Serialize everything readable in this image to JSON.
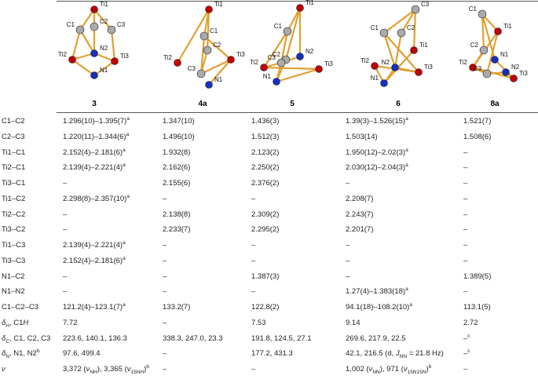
{
  "table": {
    "columns": [
      "3",
      "4a",
      "5",
      "6",
      "8a"
    ],
    "structures": [
      {
        "atoms": [
          "Ti1",
          "C1",
          "C2",
          "C3",
          "N2",
          "Ti2",
          "N1",
          "Ti3"
        ]
      },
      {
        "atoms": [
          "Ti1",
          "C1",
          "C2",
          "Ti2",
          "C3",
          "Ti3",
          "N1"
        ]
      },
      {
        "atoms": [
          "Ti1",
          "C1",
          "N2",
          "C2",
          "C3",
          "Ti2",
          "Ti3",
          "N1"
        ]
      },
      {
        "atoms": [
          "C3",
          "C1",
          "C2",
          "Ti1",
          "N2",
          "Ti3",
          "Ti2",
          "N1"
        ]
      },
      {
        "atoms": [
          "C1",
          "Ti1",
          "C2",
          "N1",
          "Ti2",
          "C3",
          "N2",
          "Ti3"
        ]
      }
    ],
    "rows": [
      {
        "label": [
          "C1–C2"
        ],
        "cells": [
          [
            {
              "text": "1.296(10)–1.395(7)"
            },
            {
              "text": "a",
              "style": "sup"
            }
          ],
          [
            "1.347(10)"
          ],
          [
            "1.436(3)"
          ],
          [
            {
              "text": "1.39(3)–1.526(15)"
            },
            {
              "text": "a",
              "style": "sup"
            }
          ],
          [
            "1.521(7)"
          ]
        ]
      },
      {
        "label": [
          "C2–C3"
        ],
        "cells": [
          [
            {
              "text": "1.220(11)–1.344(6)"
            },
            {
              "text": "a",
              "style": "sup"
            }
          ],
          [
            "1.496(10)"
          ],
          [
            "1.512(3)"
          ],
          [
            "1.503(14)"
          ],
          [
            "1.508(6)"
          ]
        ]
      },
      {
        "label": [
          "Ti1–C1"
        ],
        "cells": [
          [
            {
              "text": "2.152(4)–2.181(6)"
            },
            {
              "text": "a",
              "style": "sup"
            }
          ],
          [
            "1.932(8)"
          ],
          [
            "2.123(2)"
          ],
          [
            {
              "text": "1.950(12)–2.02(3)"
            },
            {
              "text": "a",
              "style": "sup"
            }
          ],
          [
            "–"
          ]
        ]
      },
      {
        "label": [
          "Ti2–C1"
        ],
        "cells": [
          [
            {
              "text": "2.139(4)–2.221(4)"
            },
            {
              "text": "a",
              "style": "sup"
            }
          ],
          [
            "2.162(6)"
          ],
          [
            "2.250(2)"
          ],
          [
            {
              "text": "2.030(12)–2.04(3)"
            },
            {
              "text": "a",
              "style": "sup"
            }
          ],
          [
            "–"
          ]
        ]
      },
      {
        "label": [
          "Ti3–C1"
        ],
        "cells": [
          [
            "–"
          ],
          [
            "2.155(6)"
          ],
          [
            "2.376(2)"
          ],
          [
            "–"
          ],
          [
            "–"
          ]
        ]
      },
      {
        "label": [
          "Ti1–C2"
        ],
        "cells": [
          [
            {
              "text": "2.298(8)–2.357(10)"
            },
            {
              "text": "a",
              "style": "sup"
            }
          ],
          [
            "–"
          ],
          [
            "–"
          ],
          [
            "2.208(7)"
          ],
          [
            "–"
          ]
        ]
      },
      {
        "label": [
          "Ti2–C2"
        ],
        "cells": [
          [
            "–"
          ],
          [
            "2.138(8)"
          ],
          [
            "2.309(2)"
          ],
          [
            "2.243(7)"
          ],
          [
            "–"
          ]
        ]
      },
      {
        "label": [
          "Ti3–C2"
        ],
        "cells": [
          [
            "–"
          ],
          [
            "2.233(7)"
          ],
          [
            "2.295(2)"
          ],
          [
            "2.201(7)"
          ],
          [
            "–"
          ]
        ]
      },
      {
        "label": [
          "Ti1–C3"
        ],
        "cells": [
          [
            {
              "text": "2.139(4)–2.221(4)"
            },
            {
              "text": "a",
              "style": "sup"
            }
          ],
          [
            "–"
          ],
          [
            "–"
          ],
          [
            "–"
          ],
          [
            "–"
          ]
        ]
      },
      {
        "label": [
          "Ti3–C3"
        ],
        "cells": [
          [
            {
              "text": "2.152(4)–2.181(6)"
            },
            {
              "text": "a",
              "style": "sup"
            }
          ],
          [
            "–"
          ],
          [
            "–"
          ],
          [
            "–"
          ],
          [
            "–"
          ]
        ]
      },
      {
        "label": [
          "N1–C2"
        ],
        "cells": [
          [
            "–"
          ],
          [
            "–"
          ],
          [
            "1.387(3)"
          ],
          [
            "–"
          ],
          [
            "1.389(5)"
          ]
        ]
      },
      {
        "label": [
          "N1–N2"
        ],
        "cells": [
          [
            "–"
          ],
          [
            "–"
          ],
          [
            "–"
          ],
          [
            {
              "text": "1.27(4)–1.383(18)"
            },
            {
              "text": "a",
              "style": "sup"
            }
          ],
          [
            "–"
          ]
        ]
      },
      {
        "label": [
          "C1–C2–C3"
        ],
        "cells": [
          [
            {
              "text": "121.2(4)–123.1(7)"
            },
            {
              "text": "a",
              "style": "sup"
            }
          ],
          [
            "133.2(7)"
          ],
          [
            "122.8(2)"
          ],
          [
            {
              "text": "94.1(18)–108.2(10)"
            },
            {
              "text": "a",
              "style": "sup"
            }
          ],
          [
            "113.1(5)"
          ]
        ]
      },
      {
        "label": [
          {
            "text": "δ",
            "style": "i"
          },
          {
            "text": "H",
            "style": "sub"
          },
          {
            "text": ", C1"
          },
          {
            "text": "H",
            "style": "i"
          }
        ],
        "cells": [
          [
            "7.72"
          ],
          [
            "–"
          ],
          [
            "7.53"
          ],
          [
            "9.14"
          ],
          [
            "2.72"
          ]
        ]
      },
      {
        "label": [
          {
            "text": "δ",
            "style": "i"
          },
          {
            "text": "C",
            "style": "sub"
          },
          {
            "text": ", C1, C2, C3"
          }
        ],
        "cells": [
          [
            "223.6, 140.1, 136.3"
          ],
          [
            "338.3, 247.0, 23.3"
          ],
          [
            "191.8, 124.5, 27.1"
          ],
          [
            "269.6, 217.9, 22.5"
          ],
          [
            {
              "text": "–"
            },
            {
              "text": "c",
              "style": "sup"
            }
          ]
        ]
      },
      {
        "label": [
          {
            "text": "δ",
            "style": "i"
          },
          {
            "text": "N",
            "style": "sub"
          },
          {
            "text": ", N1, N2"
          },
          {
            "text": "b",
            "style": "sup"
          }
        ],
        "cells": [
          [
            "97.6, 499.4"
          ],
          [
            "–"
          ],
          [
            "177.2, 431.3"
          ],
          [
            {
              "text": "42.1, 216.5 (d, "
            },
            {
              "text": "J",
              "style": "i"
            },
            {
              "text": "NN",
              "style": "sub"
            },
            {
              "text": " = 21.8 Hz)"
            }
          ],
          [
            {
              "text": "–"
            },
            {
              "text": "c",
              "style": "sup"
            }
          ]
        ]
      },
      {
        "label": [
          {
            "text": "ν",
            "style": "i"
          }
        ],
        "cells": [
          [
            {
              "text": "3,372 ("
            },
            {
              "text": "ν",
              "style": "i"
            },
            {
              "text": "NH",
              "style": "sub"
            },
            {
              "text": "), 3,365 ("
            },
            {
              "text": "ν",
              "style": "i"
            },
            {
              "text": "15NH",
              "style": "sub"
            },
            {
              "text": ")"
            },
            {
              "text": "b",
              "style": "sup"
            }
          ],
          [
            "–"
          ],
          [
            "–"
          ],
          [
            {
              "text": "1,002 ("
            },
            {
              "text": "ν",
              "style": "i"
            },
            {
              "text": "NN",
              "style": "sub"
            },
            {
              "text": "), 971 ("
            },
            {
              "text": "ν",
              "style": "i"
            },
            {
              "text": "15N15N",
              "style": "sub"
            },
            {
              "text": ")"
            },
            {
              "text": "b",
              "style": "sup"
            }
          ],
          [
            "–"
          ]
        ]
      }
    ]
  }
}
